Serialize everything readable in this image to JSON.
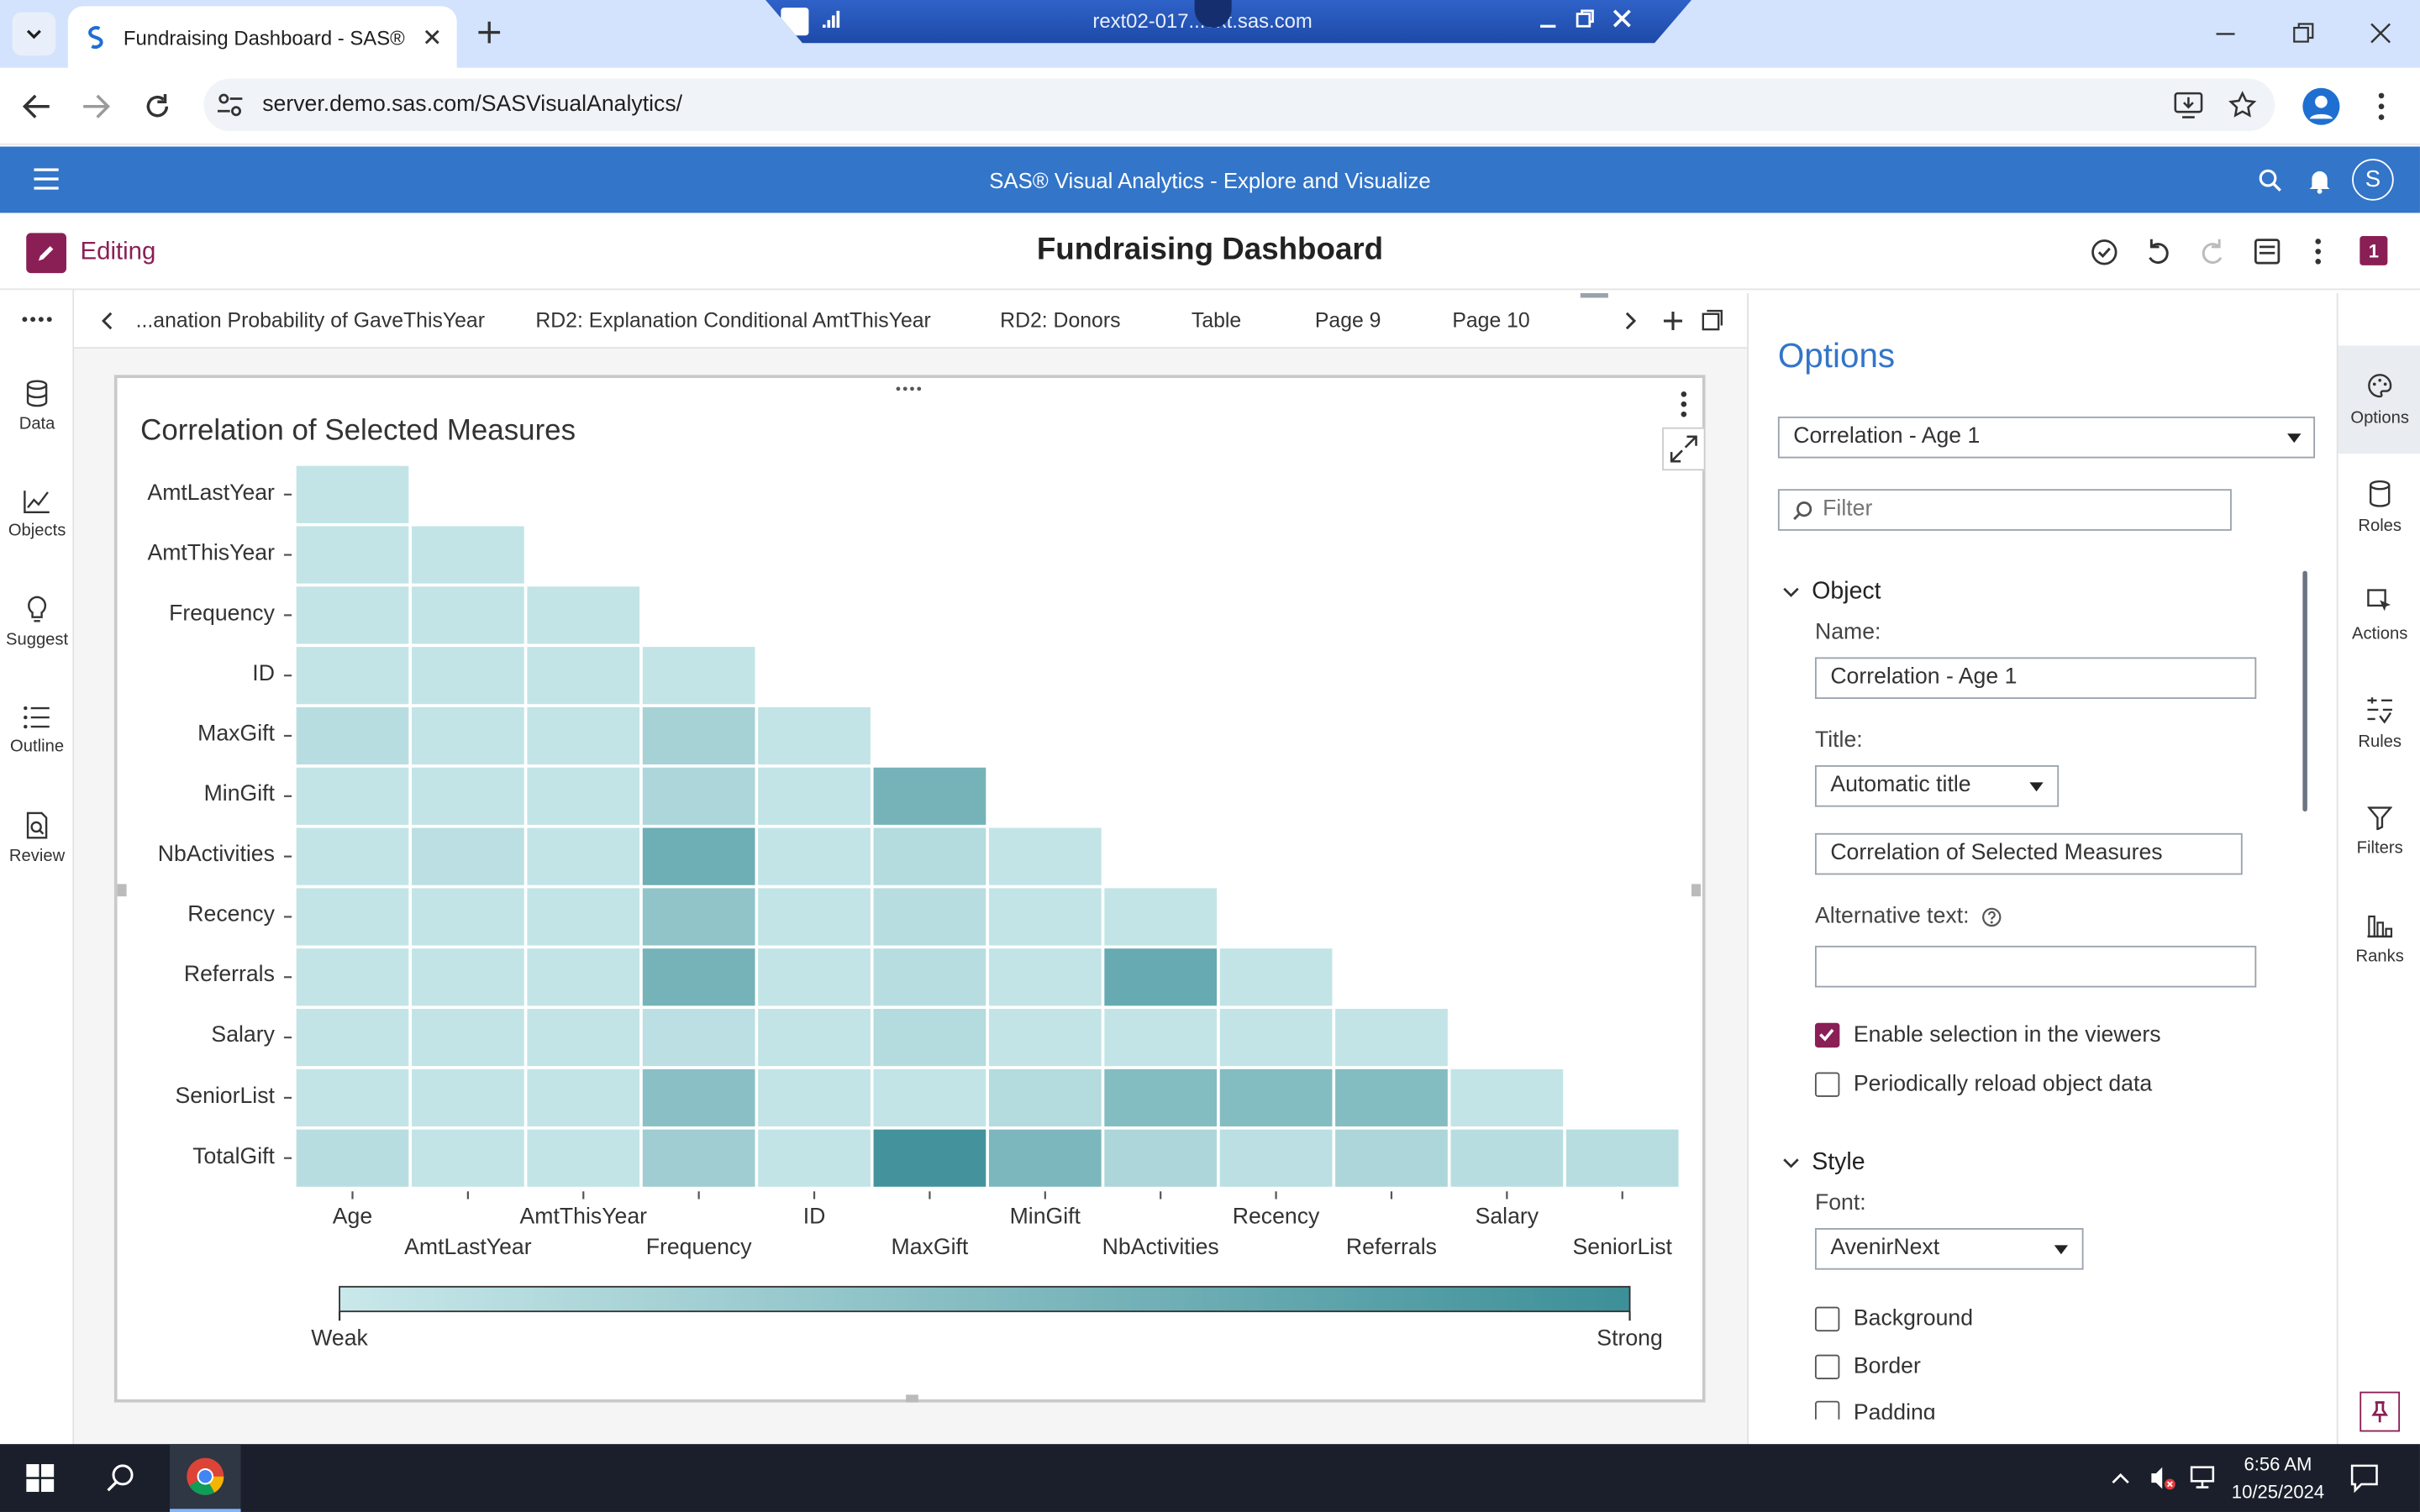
{
  "browser": {
    "tab_title": "Fundraising Dashboard - SAS®",
    "remote_title": "rext02-017...ext.sas.com",
    "url": "server.demo.sas.com/SASVisualAnalytics/"
  },
  "sas": {
    "app_title": "SAS® Visual Analytics - Explore and Visualize",
    "mode_label": "Editing",
    "report_title": "Fundraising Dashboard",
    "user_initial": "S",
    "badge_count": "1"
  },
  "left_rail": [
    "Data",
    "Objects",
    "Suggest",
    "Outline",
    "Review"
  ],
  "page_tabs": [
    "...anation Probability of GaveThisYear",
    "RD2: Explanation Conditional AmtThisYear",
    "RD2: Donors",
    "Table",
    "Page 9",
    "Page 10"
  ],
  "colors": {
    "accent": "#3375c8",
    "brand_magenta": "#8a1f56",
    "weak": "#c9e8ea",
    "strong": "#3d8f98"
  },
  "chart_data": {
    "type": "heatmap",
    "title": "Correlation of Selected Measures",
    "rows": [
      "AmtLastYear",
      "AmtThisYear",
      "Frequency",
      "ID",
      "MaxGift",
      "MinGift",
      "NbActivities",
      "Recency",
      "Referrals",
      "Salary",
      "SeniorList",
      "TotalGift"
    ],
    "columns": [
      "Age",
      "AmtLastYear",
      "AmtThisYear",
      "Frequency",
      "ID",
      "MaxGift",
      "MinGift",
      "NbActivities",
      "Recency",
      "Referrals",
      "Salary",
      "SeniorList"
    ],
    "values": [
      [
        0.05
      ],
      [
        0.05,
        0.05
      ],
      [
        0.05,
        0.05,
        0.05
      ],
      [
        0.05,
        0.05,
        0.05,
        0.05
      ],
      [
        0.12,
        0.05,
        0.05,
        0.25,
        0.05
      ],
      [
        0.05,
        0.05,
        0.05,
        0.2,
        0.05,
        0.6
      ],
      [
        0.05,
        0.1,
        0.05,
        0.65,
        0.05,
        0.15,
        0.05
      ],
      [
        0.05,
        0.05,
        0.05,
        0.4,
        0.05,
        0.12,
        0.05,
        0.05
      ],
      [
        0.05,
        0.05,
        0.05,
        0.6,
        0.05,
        0.12,
        0.05,
        0.7,
        0.05
      ],
      [
        0.05,
        0.05,
        0.05,
        0.1,
        0.05,
        0.15,
        0.05,
        0.05,
        0.05,
        0.05
      ],
      [
        0.05,
        0.05,
        0.05,
        0.45,
        0.05,
        0.05,
        0.15,
        0.5,
        0.5,
        0.5,
        0.05
      ],
      [
        0.12,
        0.05,
        0.05,
        0.3,
        0.05,
        0.95,
        0.55,
        0.2,
        0.1,
        0.2,
        0.12,
        0.12
      ]
    ],
    "legend": {
      "min_label": "Weak",
      "max_label": "Strong"
    }
  },
  "options_panel": {
    "title": "Options",
    "selected_object": "Correlation - Age 1",
    "filter_placeholder": "Filter",
    "object_section": "Object",
    "name_label": "Name:",
    "name_value": "Correlation - Age 1",
    "title_label": "Title:",
    "title_mode": "Automatic title",
    "title_value": "Correlation of Selected Measures",
    "alt_text_label": "Alternative text:",
    "alt_text_value": "",
    "enable_selection_label": "Enable selection in the viewers",
    "enable_selection_checked": true,
    "reload_label": "Periodically reload object data",
    "reload_checked": false,
    "style_section": "Style",
    "font_label": "Font:",
    "font_value": "AvenirNext",
    "background_label": "Background",
    "border_label": "Border",
    "padding_label": "Padding"
  },
  "right_rail": [
    "Options",
    "Roles",
    "Actions",
    "Rules",
    "Filters",
    "Ranks"
  ],
  "taskbar": {
    "time": "6:56 AM",
    "date": "10/25/2024"
  }
}
